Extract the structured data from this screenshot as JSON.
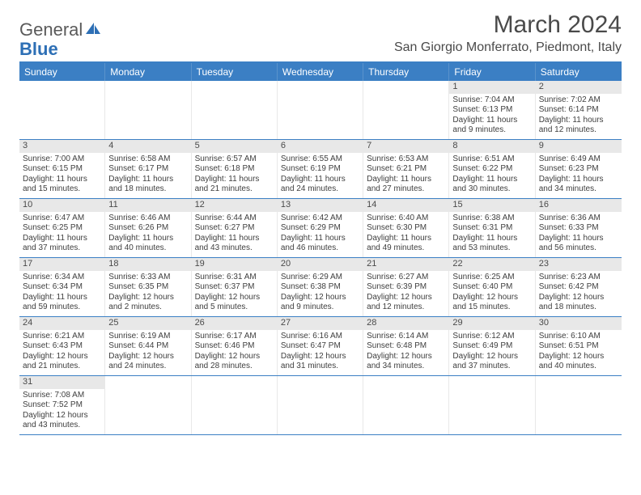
{
  "logo": {
    "text1": "General",
    "text2": "Blue"
  },
  "title": "March 2024",
  "location": "San Giorgio Monferrato, Piedmont, Italy",
  "colors": {
    "header_bg": "#3b7fc4",
    "daynum_bg": "#e8e8e8",
    "border": "#3b7fc4",
    "text": "#3e3e3e"
  },
  "daynames": [
    "Sunday",
    "Monday",
    "Tuesday",
    "Wednesday",
    "Thursday",
    "Friday",
    "Saturday"
  ],
  "weeks": [
    [
      null,
      null,
      null,
      null,
      null,
      {
        "n": "1",
        "sr": "Sunrise: 7:04 AM",
        "ss": "Sunset: 6:13 PM",
        "dl1": "Daylight: 11 hours",
        "dl2": "and 9 minutes."
      },
      {
        "n": "2",
        "sr": "Sunrise: 7:02 AM",
        "ss": "Sunset: 6:14 PM",
        "dl1": "Daylight: 11 hours",
        "dl2": "and 12 minutes."
      }
    ],
    [
      {
        "n": "3",
        "sr": "Sunrise: 7:00 AM",
        "ss": "Sunset: 6:15 PM",
        "dl1": "Daylight: 11 hours",
        "dl2": "and 15 minutes."
      },
      {
        "n": "4",
        "sr": "Sunrise: 6:58 AM",
        "ss": "Sunset: 6:17 PM",
        "dl1": "Daylight: 11 hours",
        "dl2": "and 18 minutes."
      },
      {
        "n": "5",
        "sr": "Sunrise: 6:57 AM",
        "ss": "Sunset: 6:18 PM",
        "dl1": "Daylight: 11 hours",
        "dl2": "and 21 minutes."
      },
      {
        "n": "6",
        "sr": "Sunrise: 6:55 AM",
        "ss": "Sunset: 6:19 PM",
        "dl1": "Daylight: 11 hours",
        "dl2": "and 24 minutes."
      },
      {
        "n": "7",
        "sr": "Sunrise: 6:53 AM",
        "ss": "Sunset: 6:21 PM",
        "dl1": "Daylight: 11 hours",
        "dl2": "and 27 minutes."
      },
      {
        "n": "8",
        "sr": "Sunrise: 6:51 AM",
        "ss": "Sunset: 6:22 PM",
        "dl1": "Daylight: 11 hours",
        "dl2": "and 30 minutes."
      },
      {
        "n": "9",
        "sr": "Sunrise: 6:49 AM",
        "ss": "Sunset: 6:23 PM",
        "dl1": "Daylight: 11 hours",
        "dl2": "and 34 minutes."
      }
    ],
    [
      {
        "n": "10",
        "sr": "Sunrise: 6:47 AM",
        "ss": "Sunset: 6:25 PM",
        "dl1": "Daylight: 11 hours",
        "dl2": "and 37 minutes."
      },
      {
        "n": "11",
        "sr": "Sunrise: 6:46 AM",
        "ss": "Sunset: 6:26 PM",
        "dl1": "Daylight: 11 hours",
        "dl2": "and 40 minutes."
      },
      {
        "n": "12",
        "sr": "Sunrise: 6:44 AM",
        "ss": "Sunset: 6:27 PM",
        "dl1": "Daylight: 11 hours",
        "dl2": "and 43 minutes."
      },
      {
        "n": "13",
        "sr": "Sunrise: 6:42 AM",
        "ss": "Sunset: 6:29 PM",
        "dl1": "Daylight: 11 hours",
        "dl2": "and 46 minutes."
      },
      {
        "n": "14",
        "sr": "Sunrise: 6:40 AM",
        "ss": "Sunset: 6:30 PM",
        "dl1": "Daylight: 11 hours",
        "dl2": "and 49 minutes."
      },
      {
        "n": "15",
        "sr": "Sunrise: 6:38 AM",
        "ss": "Sunset: 6:31 PM",
        "dl1": "Daylight: 11 hours",
        "dl2": "and 53 minutes."
      },
      {
        "n": "16",
        "sr": "Sunrise: 6:36 AM",
        "ss": "Sunset: 6:33 PM",
        "dl1": "Daylight: 11 hours",
        "dl2": "and 56 minutes."
      }
    ],
    [
      {
        "n": "17",
        "sr": "Sunrise: 6:34 AM",
        "ss": "Sunset: 6:34 PM",
        "dl1": "Daylight: 11 hours",
        "dl2": "and 59 minutes."
      },
      {
        "n": "18",
        "sr": "Sunrise: 6:33 AM",
        "ss": "Sunset: 6:35 PM",
        "dl1": "Daylight: 12 hours",
        "dl2": "and 2 minutes."
      },
      {
        "n": "19",
        "sr": "Sunrise: 6:31 AM",
        "ss": "Sunset: 6:37 PM",
        "dl1": "Daylight: 12 hours",
        "dl2": "and 5 minutes."
      },
      {
        "n": "20",
        "sr": "Sunrise: 6:29 AM",
        "ss": "Sunset: 6:38 PM",
        "dl1": "Daylight: 12 hours",
        "dl2": "and 9 minutes."
      },
      {
        "n": "21",
        "sr": "Sunrise: 6:27 AM",
        "ss": "Sunset: 6:39 PM",
        "dl1": "Daylight: 12 hours",
        "dl2": "and 12 minutes."
      },
      {
        "n": "22",
        "sr": "Sunrise: 6:25 AM",
        "ss": "Sunset: 6:40 PM",
        "dl1": "Daylight: 12 hours",
        "dl2": "and 15 minutes."
      },
      {
        "n": "23",
        "sr": "Sunrise: 6:23 AM",
        "ss": "Sunset: 6:42 PM",
        "dl1": "Daylight: 12 hours",
        "dl2": "and 18 minutes."
      }
    ],
    [
      {
        "n": "24",
        "sr": "Sunrise: 6:21 AM",
        "ss": "Sunset: 6:43 PM",
        "dl1": "Daylight: 12 hours",
        "dl2": "and 21 minutes."
      },
      {
        "n": "25",
        "sr": "Sunrise: 6:19 AM",
        "ss": "Sunset: 6:44 PM",
        "dl1": "Daylight: 12 hours",
        "dl2": "and 24 minutes."
      },
      {
        "n": "26",
        "sr": "Sunrise: 6:17 AM",
        "ss": "Sunset: 6:46 PM",
        "dl1": "Daylight: 12 hours",
        "dl2": "and 28 minutes."
      },
      {
        "n": "27",
        "sr": "Sunrise: 6:16 AM",
        "ss": "Sunset: 6:47 PM",
        "dl1": "Daylight: 12 hours",
        "dl2": "and 31 minutes."
      },
      {
        "n": "28",
        "sr": "Sunrise: 6:14 AM",
        "ss": "Sunset: 6:48 PM",
        "dl1": "Daylight: 12 hours",
        "dl2": "and 34 minutes."
      },
      {
        "n": "29",
        "sr": "Sunrise: 6:12 AM",
        "ss": "Sunset: 6:49 PM",
        "dl1": "Daylight: 12 hours",
        "dl2": "and 37 minutes."
      },
      {
        "n": "30",
        "sr": "Sunrise: 6:10 AM",
        "ss": "Sunset: 6:51 PM",
        "dl1": "Daylight: 12 hours",
        "dl2": "and 40 minutes."
      }
    ],
    [
      {
        "n": "31",
        "sr": "Sunrise: 7:08 AM",
        "ss": "Sunset: 7:52 PM",
        "dl1": "Daylight: 12 hours",
        "dl2": "and 43 minutes."
      },
      null,
      null,
      null,
      null,
      null,
      null
    ]
  ]
}
